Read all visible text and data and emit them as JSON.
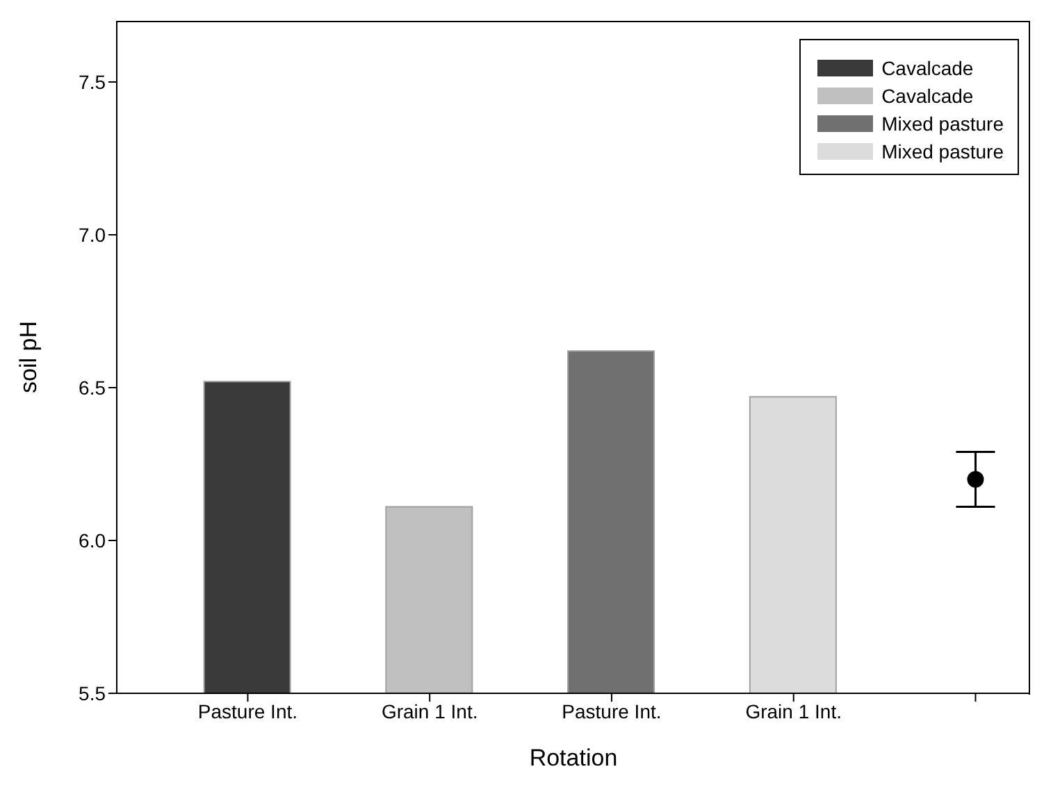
{
  "chart_data": {
    "type": "bar",
    "xlabel": "Rotation",
    "ylabel": "soil pH",
    "categories": [
      "Pasture Int.",
      "Grain 1 Int.",
      "Pasture Int.",
      "Grain 1 Int.",
      null
    ],
    "series": [
      {
        "name": "Cavalcade",
        "color": "#3a3a3a",
        "values": [
          6.52,
          null,
          null,
          null,
          null
        ]
      },
      {
        "name": "Cavalcade",
        "color": "#c0c0c0",
        "values": [
          null,
          6.11,
          null,
          null,
          null
        ]
      },
      {
        "name": "Mixed pasture",
        "color": "#707070",
        "values": [
          null,
          null,
          6.62,
          null,
          null
        ]
      },
      {
        "name": "Mixed pasture",
        "color": "#dcdcdc",
        "values": [
          null,
          null,
          null,
          6.47,
          null
        ]
      },
      {
        "type": "scatter",
        "color": "#000000",
        "values": [
          null,
          null,
          null,
          null,
          6.2
        ],
        "errors": [
          null,
          null,
          null,
          null,
          0.09
        ]
      }
    ],
    "ylim": [
      5.5,
      7.7
    ],
    "yticks": [
      {
        "value": 5.5,
        "label": "5.5"
      },
      {
        "value": 6,
        "label": "6.0"
      },
      {
        "value": 6.5,
        "label": "6.5"
      },
      {
        "value": 7,
        "label": "7.0"
      },
      {
        "value": 7.5,
        "label": "7.5"
      }
    ],
    "legend": "top right",
    "marker": "circle"
  }
}
